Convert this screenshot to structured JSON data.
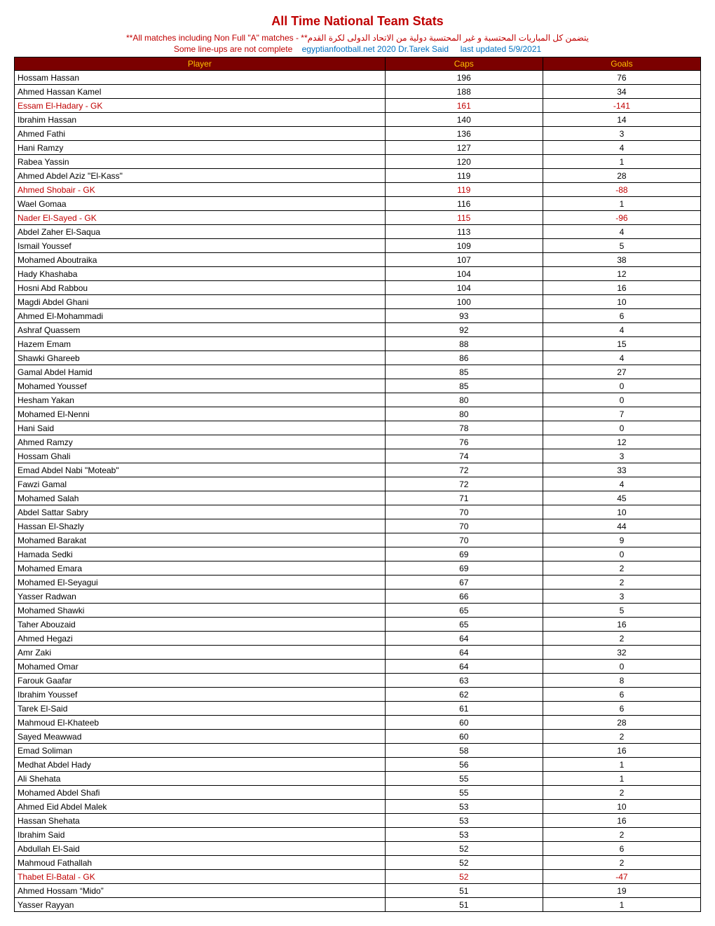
{
  "title": "All Time National Team Stats",
  "subtitle_en": "**All matches including Non Full \"A\" matches - ",
  "subtitle_ar": "يتضمن كل المباريات المحتسبة و غير المحتسبة دولية من الاتحاد الدولى لكرة القدم**",
  "note_red": "Some line-ups are not complete",
  "note_blue_1": "egyptianfootball.net 2020 Dr.Tarek Said",
  "note_blue_2": "last updated 5/9/2021",
  "columns": [
    "Player",
    "Caps",
    "Goals"
  ],
  "rows": [
    {
      "player": "Hossam Hassan",
      "caps": 196,
      "goals": 76,
      "gk": false
    },
    {
      "player": "Ahmed Hassan Kamel",
      "caps": 188,
      "goals": 34,
      "gk": false
    },
    {
      "player": "Essam El-Hadary - GK",
      "caps": 161,
      "goals": -141,
      "gk": true
    },
    {
      "player": "Ibrahim Hassan",
      "caps": 140,
      "goals": 14,
      "gk": false
    },
    {
      "player": "Ahmed Fathi",
      "caps": 136,
      "goals": 3,
      "gk": false
    },
    {
      "player": "Hani Ramzy",
      "caps": 127,
      "goals": 4,
      "gk": false
    },
    {
      "player": "Rabea Yassin",
      "caps": 120,
      "goals": 1,
      "gk": false
    },
    {
      "player": "Ahmed Abdel Aziz \"El-Kass\"",
      "caps": 119,
      "goals": 28,
      "gk": false
    },
    {
      "player": "Ahmed Shobair - GK",
      "caps": 119,
      "goals": -88,
      "gk": true
    },
    {
      "player": "Wael Gomaa",
      "caps": 116,
      "goals": 1,
      "gk": false
    },
    {
      "player": "Nader El-Sayed - GK",
      "caps": 115,
      "goals": -96,
      "gk": true
    },
    {
      "player": "Abdel Zaher El-Saqua",
      "caps": 113,
      "goals": 4,
      "gk": false
    },
    {
      "player": "Ismail Youssef",
      "caps": 109,
      "goals": 5,
      "gk": false
    },
    {
      "player": "Mohamed Aboutraika",
      "caps": 107,
      "goals": 38,
      "gk": false
    },
    {
      "player": "Hady Khashaba",
      "caps": 104,
      "goals": 12,
      "gk": false
    },
    {
      "player": "Hosni Abd Rabbou",
      "caps": 104,
      "goals": 16,
      "gk": false
    },
    {
      "player": "Magdi Abdel Ghani",
      "caps": 100,
      "goals": 10,
      "gk": false
    },
    {
      "player": "Ahmed El-Mohammadi",
      "caps": 93,
      "goals": 6,
      "gk": false
    },
    {
      "player": "Ashraf Quassem",
      "caps": 92,
      "goals": 4,
      "gk": false
    },
    {
      "player": "Hazem Emam",
      "caps": 88,
      "goals": 15,
      "gk": false
    },
    {
      "player": "Shawki Ghareeb",
      "caps": 86,
      "goals": 4,
      "gk": false
    },
    {
      "player": "Gamal Abdel Hamid",
      "caps": 85,
      "goals": 27,
      "gk": false
    },
    {
      "player": "Mohamed Youssef",
      "caps": 85,
      "goals": 0,
      "gk": false
    },
    {
      "player": "Hesham Yakan",
      "caps": 80,
      "goals": 0,
      "gk": false
    },
    {
      "player": "Mohamed El-Nenni",
      "caps": 80,
      "goals": 7,
      "gk": false
    },
    {
      "player": "Hani Said",
      "caps": 78,
      "goals": 0,
      "gk": false
    },
    {
      "player": "Ahmed Ramzy",
      "caps": 76,
      "goals": 12,
      "gk": false
    },
    {
      "player": "Hossam Ghali",
      "caps": 74,
      "goals": 3,
      "gk": false
    },
    {
      "player": "Emad Abdel Nabi \"Moteab\"",
      "caps": 72,
      "goals": 33,
      "gk": false
    },
    {
      "player": "Fawzi Gamal",
      "caps": 72,
      "goals": 4,
      "gk": false
    },
    {
      "player": "Mohamed Salah",
      "caps": 71,
      "goals": 45,
      "gk": false
    },
    {
      "player": "Abdel Sattar Sabry",
      "caps": 70,
      "goals": 10,
      "gk": false
    },
    {
      "player": "Hassan El-Shazly",
      "caps": 70,
      "goals": 44,
      "gk": false
    },
    {
      "player": "Mohamed Barakat",
      "caps": 70,
      "goals": 9,
      "gk": false
    },
    {
      "player": "Hamada Sedki",
      "caps": 69,
      "goals": 0,
      "gk": false
    },
    {
      "player": "Mohamed Emara",
      "caps": 69,
      "goals": 2,
      "gk": false
    },
    {
      "player": "Mohamed El-Seyagui",
      "caps": 67,
      "goals": 2,
      "gk": false
    },
    {
      "player": "Yasser Radwan",
      "caps": 66,
      "goals": 3,
      "gk": false
    },
    {
      "player": "Mohamed Shawki",
      "caps": 65,
      "goals": 5,
      "gk": false
    },
    {
      "player": "Taher Abouzaid",
      "caps": 65,
      "goals": 16,
      "gk": false
    },
    {
      "player": "Ahmed Hegazi",
      "caps": 64,
      "goals": 2,
      "gk": false
    },
    {
      "player": "Amr Zaki",
      "caps": 64,
      "goals": 32,
      "gk": false
    },
    {
      "player": "Mohamed Omar",
      "caps": 64,
      "goals": 0,
      "gk": false
    },
    {
      "player": "Farouk Gaafar",
      "caps": 63,
      "goals": 8,
      "gk": false
    },
    {
      "player": "Ibrahim Youssef",
      "caps": 62,
      "goals": 6,
      "gk": false
    },
    {
      "player": "Tarek El-Said",
      "caps": 61,
      "goals": 6,
      "gk": false
    },
    {
      "player": "Mahmoud El-Khateeb",
      "caps": 60,
      "goals": 28,
      "gk": false
    },
    {
      "player": "Sayed Meawwad",
      "caps": 60,
      "goals": 2,
      "gk": false
    },
    {
      "player": "Emad Soliman",
      "caps": 58,
      "goals": 16,
      "gk": false
    },
    {
      "player": "Medhat Abdel Hady",
      "caps": 56,
      "goals": 1,
      "gk": false
    },
    {
      "player": "Ali Shehata",
      "caps": 55,
      "goals": 1,
      "gk": false
    },
    {
      "player": "Mohamed Abdel Shafi",
      "caps": 55,
      "goals": 2,
      "gk": false
    },
    {
      "player": "Ahmed Eid Abdel Malek",
      "caps": 53,
      "goals": 10,
      "gk": false
    },
    {
      "player": "Hassan Shehata",
      "caps": 53,
      "goals": 16,
      "gk": false
    },
    {
      "player": "Ibrahim Said",
      "caps": 53,
      "goals": 2,
      "gk": false
    },
    {
      "player": "Abdullah El-Said",
      "caps": 52,
      "goals": 6,
      "gk": false
    },
    {
      "player": "Mahmoud Fathallah",
      "caps": 52,
      "goals": 2,
      "gk": false
    },
    {
      "player": "Thabet El-Batal - GK",
      "caps": 52,
      "goals": -47,
      "gk": true
    },
    {
      "player": "Ahmed Hossam “Mido”",
      "caps": 51,
      "goals": 19,
      "gk": false
    },
    {
      "player": "Yasser Rayyan",
      "caps": 51,
      "goals": 1,
      "gk": false
    }
  ],
  "style": {
    "header_bg": "#7b0000",
    "header_fg": "#ffc000",
    "gk_color": "#c00000",
    "title_color": "#c00000",
    "blue_color": "#0070c0",
    "border_color": "#000000",
    "font_family": "Verdana",
    "title_fontsize": 18,
    "body_fontsize": 12
  }
}
